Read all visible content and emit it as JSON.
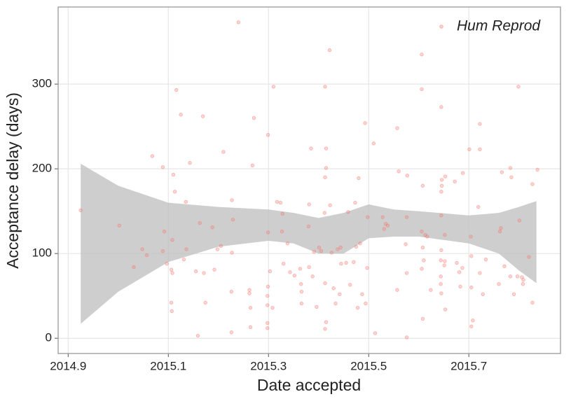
{
  "chart_data": {
    "type": "scatter",
    "x_label": "Date accepted",
    "y_label": "Acceptance delay (days)",
    "xlim": [
      2014.88,
      2015.883
    ],
    "ylim": [
      -18,
      391
    ],
    "xticks": [
      2014.9,
      2015.1,
      2015.3,
      2015.5,
      2015.7
    ],
    "yticks": [
      0,
      100,
      200,
      300
    ],
    "grid": true,
    "legend": "top-right",
    "band": {
      "color": "#bdbdbd",
      "x": [
        2014.925,
        2015.0,
        2015.1,
        2015.2,
        2015.3,
        2015.35,
        2015.4,
        2015.45,
        2015.5,
        2015.55,
        2015.6,
        2015.7,
        2015.76,
        2015.8,
        2015.835
      ],
      "upper": [
        206,
        180,
        160,
        155,
        152,
        148,
        142,
        148,
        158,
        152,
        150,
        145,
        148,
        155,
        162
      ],
      "lower": [
        17,
        55,
        90,
        108,
        115,
        112,
        100,
        100,
        118,
        120,
        120,
        112,
        100,
        80,
        65
      ]
    },
    "series": [
      {
        "name": "Hum Reprod",
        "color": "#f8766d",
        "x": [
          2014.925,
          2015.002,
          2015.048,
          2015.057,
          2015.031,
          2015.068,
          2015.089,
          2015.092,
          2015.089,
          2015.097,
          2015.108,
          2015.11,
          2015.113,
          2015.116,
          2015.106,
          2015.108,
          2015.106,
          2015.107,
          2015.125,
          2015.135,
          2015.143,
          2015.131,
          2015.136,
          2015.155,
          2015.159,
          2015.169,
          2015.163,
          2015.171,
          2015.174,
          2015.188,
          2015.192,
          2015.198,
          2015.205,
          2015.21,
          2015.24,
          2015.227,
          2015.227,
          2015.226,
          2015.226,
          2015.229,
          2015.268,
          2015.271,
          2015.262,
          2015.262,
          2015.264,
          2015.264,
          2015.299,
          2015.31,
          2015.299,
          2015.299,
          2015.298,
          2015.298,
          2015.298,
          2015.298,
          2015.303,
          2015.317,
          2015.324,
          2015.308,
          2015.328,
          2015.327,
          2015.33,
          2015.338,
          2015.343,
          2015.352,
          2015.363,
          2015.365,
          2015.366,
          2015.366,
          2015.381,
          2015.38,
          2015.381,
          2015.385,
          2015.388,
          2015.391,
          2015.396,
          2015.401,
          2015.405,
          2015.412,
          2015.413,
          2015.415,
          2015.415,
          2015.413,
          2015.413,
          2015.415,
          2015.413,
          2015.422,
          2015.423,
          2015.426,
          2015.43,
          2015.434,
          2015.438,
          2015.444,
          2015.445,
          2015.442,
          2015.455,
          2015.459,
          2015.463,
          2015.473,
          2015.475,
          2015.47,
          2015.478,
          2015.48,
          2015.483,
          2015.487,
          2015.493,
          2015.494,
          2015.497,
          2015.498,
          2015.51,
          2015.513,
          2015.528,
          2015.531,
          2015.534,
          2015.538,
          2015.557,
          2015.56,
          2015.557,
          2015.574,
          2015.576,
          2015.576,
          2015.577,
          2015.576,
          2015.606,
          2015.606,
          2015.608,
          2015.606,
          2015.608,
          2015.606,
          2015.608,
          2015.61,
          2015.613,
          2015.617,
          2015.624,
          2015.645,
          2015.646,
          2015.646,
          2015.645,
          2015.645,
          2015.645,
          2015.644,
          2015.644,
          2015.644,
          2015.645,
          2015.651,
          2015.652,
          2015.653,
          2015.652,
          2015.653,
          2015.672,
          2015.676,
          2015.683,
          2015.687,
          2015.688,
          2015.681,
          2015.701,
          2015.704,
          2015.705,
          2015.705,
          2015.708,
          2015.705,
          2015.722,
          2015.722,
          2015.719,
          2015.722,
          2015.728,
          2015.734,
          2015.762,
          2015.764,
          2015.766,
          2015.76,
          2015.771,
          2015.783,
          2015.785,
          2015.783,
          2015.79,
          2015.799,
          2015.801,
          2015.797,
          2015.806,
          2015.809,
          2015.808,
          2015.82,
          2015.827,
          2015.827,
          2015.837
        ],
        "y": [
          151,
          133,
          105,
          98,
          84,
          215,
          202,
          126,
          103,
          88,
          116,
          193,
          173,
          293,
          81,
          77,
          42,
          32,
          264,
          161,
          207,
          93,
          105,
          79,
          3,
          262,
          136,
          77,
          42,
          131,
          81,
          105,
          109,
          220,
          373,
          163,
          101,
          55,
          7,
          140,
          204,
          260,
          57,
          53,
          36,
          13,
          240,
          297,
          125,
          61,
          50,
          39,
          18,
          12,
          79,
          161,
          160,
          36,
          147,
          126,
          88,
          112,
          78,
          74,
          82,
          64,
          55,
          41,
          158,
          132,
          84,
          224,
          73,
          102,
          37,
          107,
          103,
          148,
          297,
          224,
          201,
          190,
          65,
          19,
          11,
          340,
          157,
          101,
          59,
          41,
          105,
          107,
          88,
          52,
          89,
          149,
          63,
          160,
          108,
          90,
          36,
          189,
          112,
          52,
          254,
          41,
          83,
          143,
          230,
          6,
          143,
          129,
          135,
          133,
          248,
          197,
          57,
          111,
          77,
          1,
          192,
          143,
          335,
          294,
          180,
          126,
          107,
          82,
          23,
          92,
          122,
          120,
          57,
          273,
          187,
          180,
          173,
          145,
          104,
          92,
          73,
          64,
          53,
          86,
          91,
          34,
          122,
          191,
          185,
          89,
          61,
          83,
          195,
          78,
          223,
          120,
          97,
          60,
          21,
          14,
          253,
          223,
          155,
          77,
          52,
          93,
          126,
          130,
          196,
          64,
          85,
          201,
          190,
          73,
          52,
          297,
          139,
          73,
          72,
          69,
          64,
          96,
          182,
          42,
          199
        ]
      }
    ]
  }
}
